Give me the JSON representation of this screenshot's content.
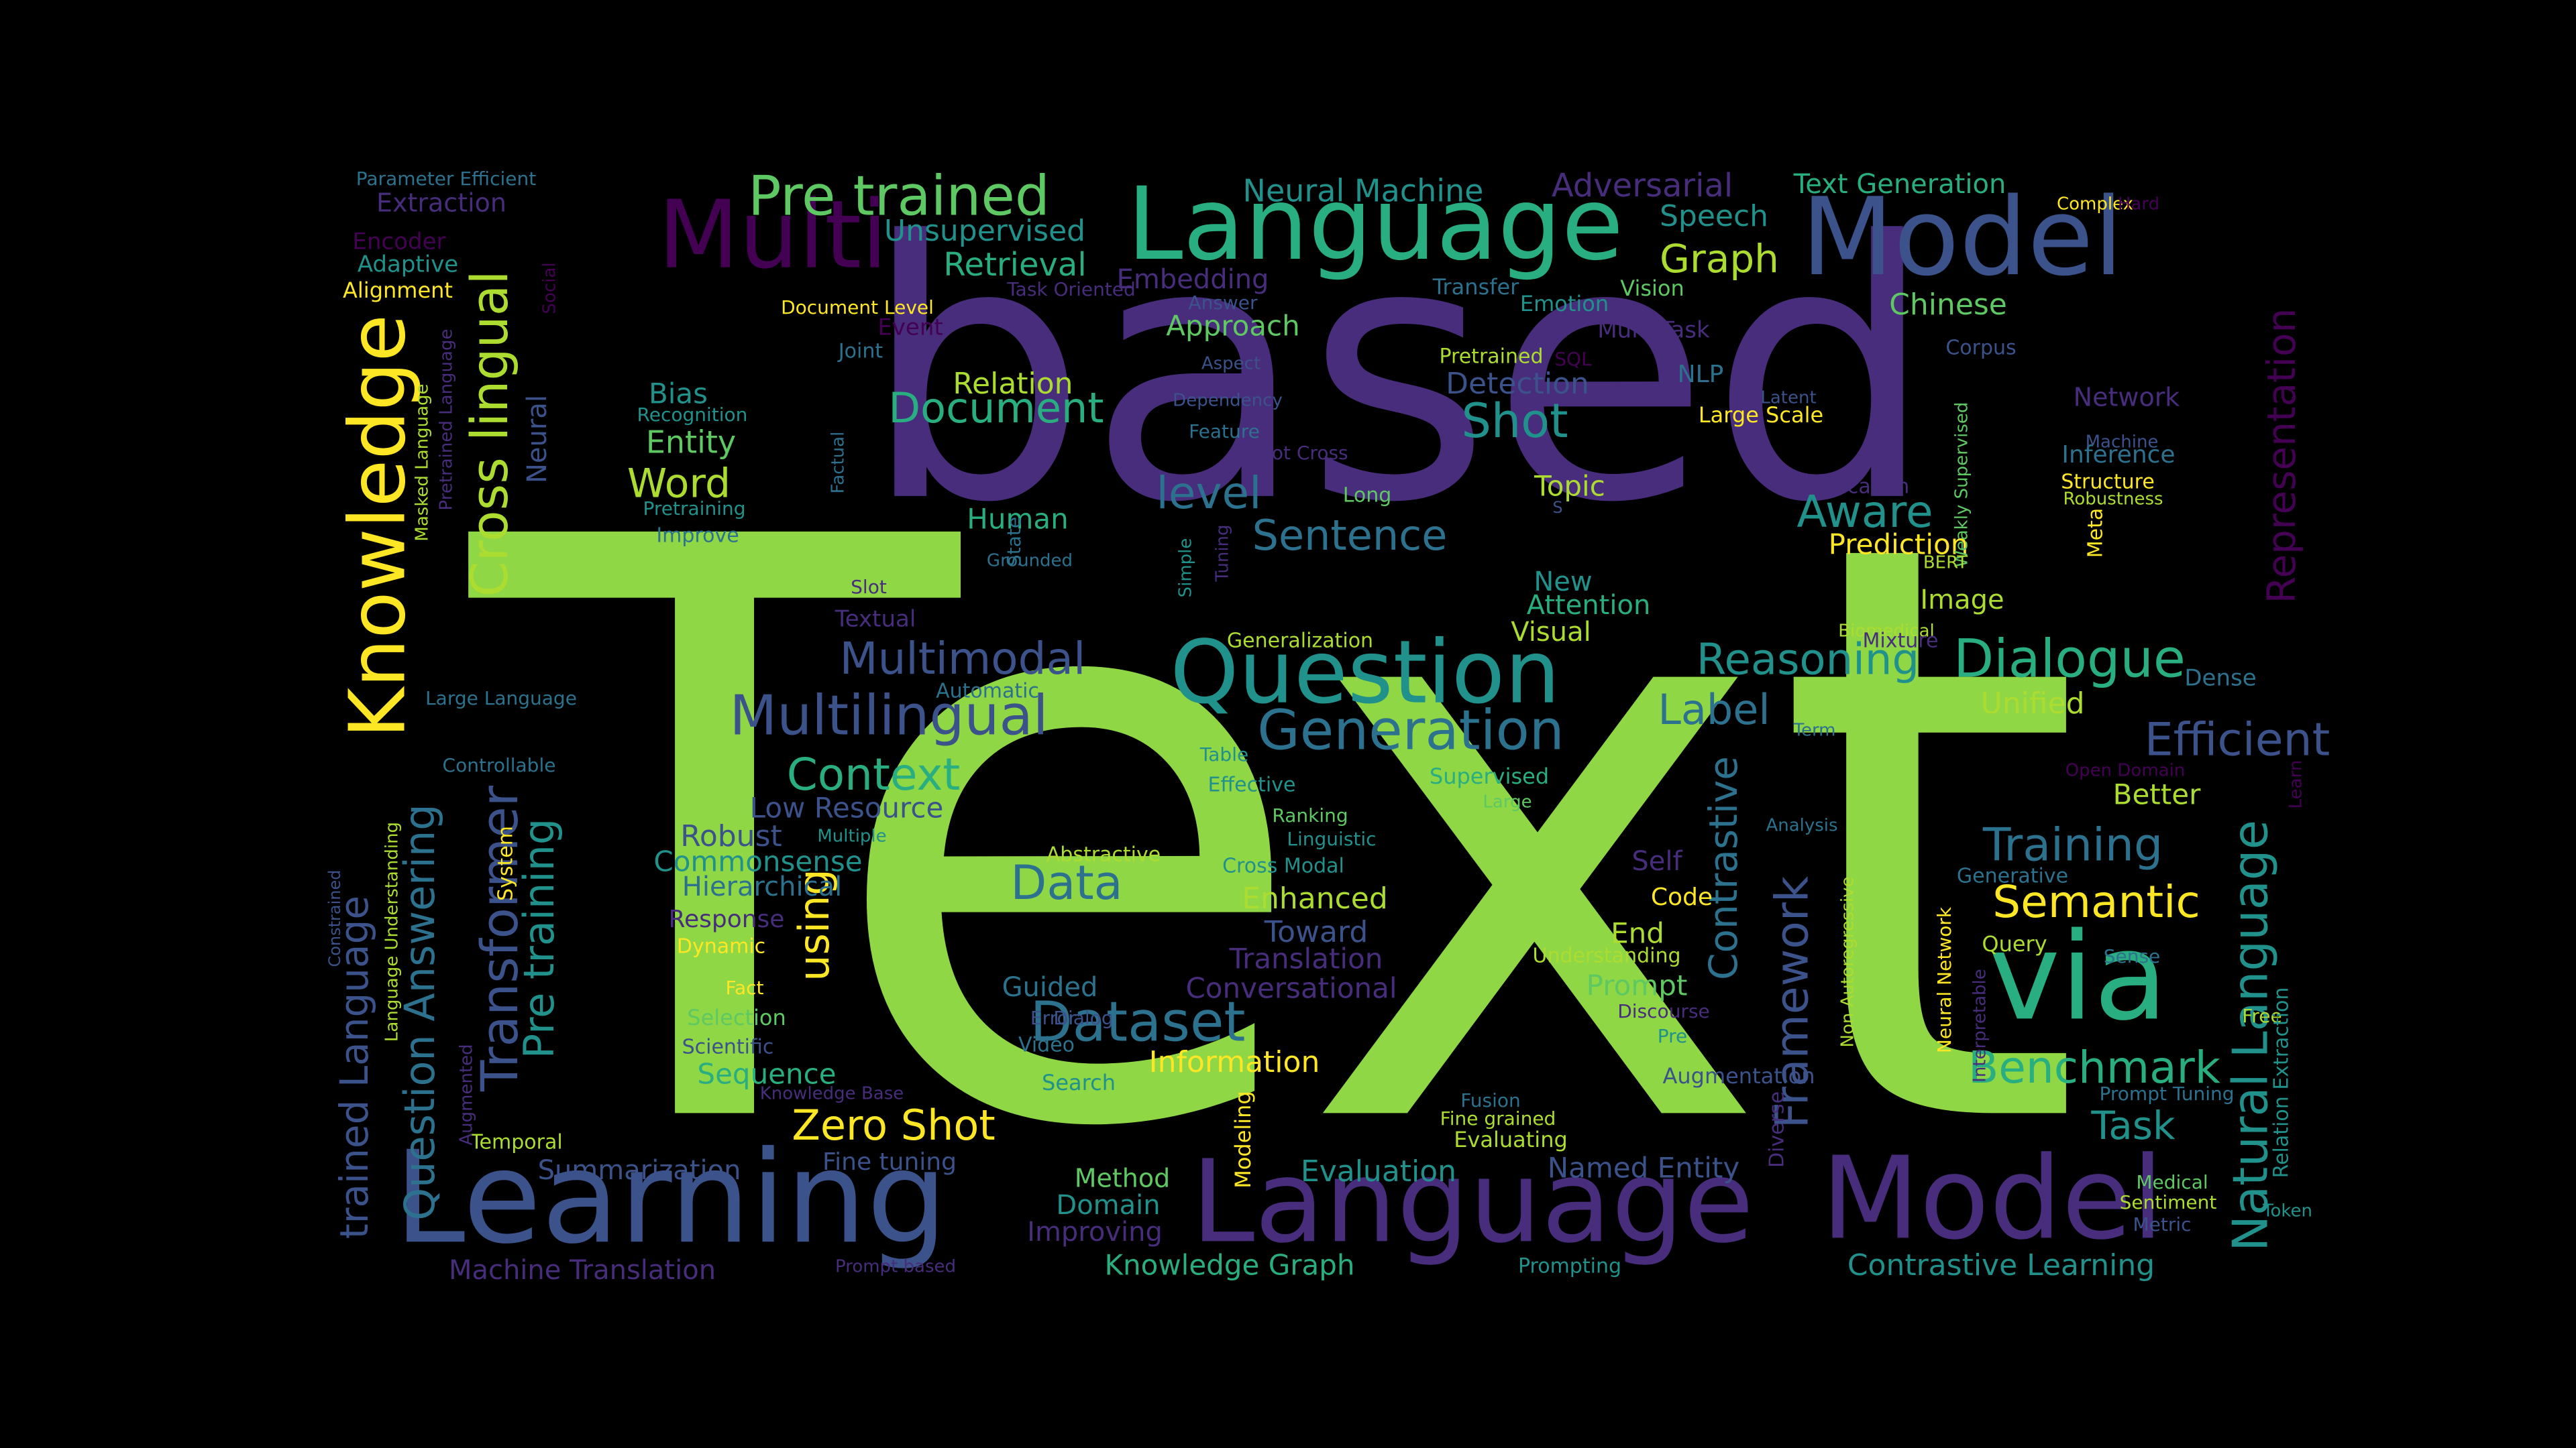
{
  "palette": {
    "background": "#000000",
    "c1": "#440154",
    "c2": "#472D7B",
    "c3": "#3B528B",
    "c4": "#2C728E",
    "c5": "#21918C",
    "c6": "#28AE80",
    "c7": "#5EC962",
    "c8": "#8FD744",
    "c9": "#ADDC30",
    "c10": "#FDE725"
  },
  "words": [
    {
      "text": "Text",
      "color": "#8FD744"
    },
    {
      "text": "based",
      "color": "#472D7B"
    },
    {
      "text": "Language",
      "color": "#28AE80"
    },
    {
      "text": "Model",
      "color": "#3B528B"
    },
    {
      "text": "Learning",
      "color": "#3B528B"
    },
    {
      "text": "Language",
      "color": "#472D7B"
    },
    {
      "text": "Model",
      "color": "#472D7B"
    },
    {
      "text": "Multi",
      "color": "#440154"
    },
    {
      "text": "Question",
      "color": "#21918C"
    },
    {
      "text": "Knowledge",
      "color": "#FDE725"
    },
    {
      "text": "via",
      "color": "#28AE80"
    },
    {
      "text": "Pre trained",
      "color": "#5EC962"
    },
    {
      "text": "Cross lingual",
      "color": "#ADDC30"
    },
    {
      "text": "Generation",
      "color": "#2C728E"
    },
    {
      "text": "Multilingual",
      "color": "#3B528B"
    },
    {
      "text": "Transformer",
      "color": "#3B528B"
    },
    {
      "text": "Natural Language",
      "color": "#21918C"
    },
    {
      "text": "Dialogue",
      "color": "#28AE80"
    },
    {
      "text": "Representation",
      "color": "#440154"
    },
    {
      "text": "Question Answering",
      "color": "#2C728E"
    },
    {
      "text": "Pre training",
      "color": "#21918C"
    },
    {
      "text": "trained Language",
      "color": "#3B528B"
    },
    {
      "text": "Framework",
      "color": "#3B528B"
    },
    {
      "text": "Contrastive",
      "color": "#2C728E"
    },
    {
      "text": "Multimodal",
      "color": "#3B528B"
    },
    {
      "text": "Reasoning",
      "color": "#21918C"
    },
    {
      "text": "Efficient",
      "color": "#3B528B"
    },
    {
      "text": "Training",
      "color": "#2C728E"
    },
    {
      "text": "Semantic",
      "color": "#FDE725"
    },
    {
      "text": "Benchmark",
      "color": "#28AE80"
    },
    {
      "text": "Context",
      "color": "#28AE80"
    },
    {
      "text": "Data",
      "color": "#2C728E"
    },
    {
      "text": "Dataset",
      "color": "#2C728E"
    },
    {
      "text": "Document",
      "color": "#28AE80"
    },
    {
      "text": "Shot",
      "color": "#21918C"
    },
    {
      "text": "Zero Shot",
      "color": "#FDE725"
    },
    {
      "text": "Sentence",
      "color": "#2C728E"
    },
    {
      "text": "Aware",
      "color": "#21918C"
    },
    {
      "text": "level",
      "color": "#2C728E"
    },
    {
      "text": "Word",
      "color": "#ADDC30"
    },
    {
      "text": "Graph",
      "color": "#ADDC30"
    },
    {
      "text": "Label",
      "color": "#2C728E"
    },
    {
      "text": "Task",
      "color": "#21918C"
    },
    {
      "text": "using",
      "color": "#FDE725"
    },
    {
      "text": "Neural Machine",
      "color": "#21918C"
    },
    {
      "text": "Adversarial",
      "color": "#472D7B"
    },
    {
      "text": "Text Generation",
      "color": "#28AE80"
    },
    {
      "text": "Speech",
      "color": "#21918C"
    },
    {
      "text": "Chinese",
      "color": "#5EC962"
    },
    {
      "text": "Retrieval",
      "color": "#28AE80"
    },
    {
      "text": "Unsupervised",
      "color": "#21918C"
    },
    {
      "text": "Embedding",
      "color": "#472D7B"
    },
    {
      "text": "Approach",
      "color": "#5EC962"
    },
    {
      "text": "Relation",
      "color": "#ADDC30"
    },
    {
      "text": "Detection",
      "color": "#3B528B"
    },
    {
      "text": "Entity",
      "color": "#5EC962"
    },
    {
      "text": "Bias",
      "color": "#21918C"
    },
    {
      "text": "Human",
      "color": "#28AE80"
    },
    {
      "text": "Topic",
      "color": "#ADDC30"
    },
    {
      "text": "Prediction",
      "color": "#FDE725"
    },
    {
      "text": "Attention",
      "color": "#28AE80"
    },
    {
      "text": "New",
      "color": "#21918C"
    },
    {
      "text": "Image",
      "color": "#ADDC30"
    },
    {
      "text": "Visual",
      "color": "#ADDC30"
    },
    {
      "text": "Unified",
      "color": "#ADDC30"
    },
    {
      "text": "Better",
      "color": "#ADDC30"
    },
    {
      "text": "Low Resource",
      "color": "#3B528B"
    },
    {
      "text": "Robust",
      "color": "#3B528B"
    },
    {
      "text": "Commonsense",
      "color": "#21918C"
    },
    {
      "text": "Hierarchical",
      "color": "#2C728E"
    },
    {
      "text": "Response",
      "color": "#472D7B"
    },
    {
      "text": "Enhanced",
      "color": "#ADDC30"
    },
    {
      "text": "Toward",
      "color": "#3B528B"
    },
    {
      "text": "Translation",
      "color": "#472D7B"
    },
    {
      "text": "Conversational",
      "color": "#472D7B"
    },
    {
      "text": "Guided",
      "color": "#2C728E"
    },
    {
      "text": "Information",
      "color": "#FDE725"
    },
    {
      "text": "Sequence",
      "color": "#28AE80"
    },
    {
      "text": "Summarization",
      "color": "#3B528B"
    },
    {
      "text": "Fine tuning",
      "color": "#3B528B"
    },
    {
      "text": "Method",
      "color": "#5EC962"
    },
    {
      "text": "Domain",
      "color": "#21918C"
    },
    {
      "text": "Improving",
      "color": "#472D7B"
    },
    {
      "text": "Knowledge Graph",
      "color": "#28AE80"
    },
    {
      "text": "Evaluation",
      "color": "#21918C"
    },
    {
      "text": "Named Entity",
      "color": "#3B528B"
    },
    {
      "text": "Contrastive Learning",
      "color": "#21918C"
    },
    {
      "text": "Machine Translation",
      "color": "#472D7B"
    },
    {
      "text": "Self",
      "color": "#472D7B"
    },
    {
      "text": "Code",
      "color": "#FDE725"
    },
    {
      "text": "End",
      "color": "#ADDC30"
    },
    {
      "text": "Prompt",
      "color": "#5EC962"
    },
    {
      "text": "Extraction",
      "color": "#472D7B"
    },
    {
      "text": "Encoder",
      "color": "#440154"
    },
    {
      "text": "Adaptive",
      "color": "#21918C"
    },
    {
      "text": "Alignment",
      "color": "#FDE725"
    },
    {
      "text": "Parameter Efficient",
      "color": "#2C728E"
    },
    {
      "text": "Neural",
      "color": "#3B528B"
    },
    {
      "text": "Recognition",
      "color": "#21918C"
    },
    {
      "text": "Pretraining",
      "color": "#21918C"
    },
    {
      "text": "Improve",
      "color": "#2C728E"
    },
    {
      "text": "Textual",
      "color": "#472D7B"
    },
    {
      "text": "Slot",
      "color": "#472D7B"
    },
    {
      "text": "Automatic",
      "color": "#2C728E"
    },
    {
      "text": "Large Language",
      "color": "#2C728E"
    },
    {
      "text": "Controllable",
      "color": "#2C728E"
    },
    {
      "text": "Multiple",
      "color": "#21918C"
    },
    {
      "text": "Abstractive",
      "color": "#ADDC30"
    },
    {
      "text": "Cross Modal",
      "color": "#21918C"
    },
    {
      "text": "Linguistic",
      "color": "#21918C"
    },
    {
      "text": "Ranking",
      "color": "#5EC962"
    },
    {
      "text": "Effective",
      "color": "#21918C"
    },
    {
      "text": "Table",
      "color": "#21918C"
    },
    {
      "text": "Supervised",
      "color": "#28AE80"
    },
    {
      "text": "Large",
      "color": "#5EC962"
    },
    {
      "text": "Generalization",
      "color": "#ADDC30"
    },
    {
      "text": "Grounded",
      "color": "#2C728E"
    },
    {
      "text": "State",
      "color": "#2C728E"
    },
    {
      "text": "Simple",
      "color": "#21918C"
    },
    {
      "text": "Tuning",
      "color": "#472D7B"
    },
    {
      "text": "Long",
      "color": "#5EC962"
    },
    {
      "text": "Shot Cross",
      "color": "#472D7B"
    },
    {
      "text": "Feature",
      "color": "#2C728E"
    },
    {
      "text": "Dependency",
      "color": "#3B528B"
    },
    {
      "text": "Aspect",
      "color": "#3B528B"
    },
    {
      "text": "Answer",
      "color": "#3B528B"
    },
    {
      "text": "Task Oriented",
      "color": "#472D7B"
    },
    {
      "text": "Document Level",
      "color": "#FDE725"
    },
    {
      "text": "Event",
      "color": "#440154"
    },
    {
      "text": "Joint",
      "color": "#2C728E"
    },
    {
      "text": "Transfer",
      "color": "#2C728E"
    },
    {
      "text": "Emotion",
      "color": "#21918C"
    },
    {
      "text": "Vision",
      "color": "#5EC962"
    },
    {
      "text": "Multi Task",
      "color": "#472D7B"
    },
    {
      "text": "Pretrained",
      "color": "#ADDC30"
    },
    {
      "text": "SQL",
      "color": "#440154"
    },
    {
      "text": "NLP",
      "color": "#2C728E"
    },
    {
      "text": "Latent",
      "color": "#3B528B"
    },
    {
      "text": "Large Scale",
      "color": "#FDE725"
    },
    {
      "text": "Classification",
      "color": "#472D7B"
    },
    {
      "text": "Corpus",
      "color": "#3B528B"
    },
    {
      "text": "Network",
      "color": "#472D7B"
    },
    {
      "text": "Inference",
      "color": "#2C728E"
    },
    {
      "text": "Machine",
      "color": "#3B528B"
    },
    {
      "text": "Structure",
      "color": "#FDE725"
    },
    {
      "text": "Robustness",
      "color": "#ADDC30"
    },
    {
      "text": "Meta",
      "color": "#FDE725"
    },
    {
      "text": "Weakly Supervised",
      "color": "#5EC962"
    },
    {
      "text": "BERT",
      "color": "#ADDC30"
    },
    {
      "text": "Biomedical",
      "color": "#ADDC30"
    },
    {
      "text": "Mixture",
      "color": "#472D7B"
    },
    {
      "text": "Dense",
      "color": "#2C728E"
    },
    {
      "text": "Term",
      "color": "#2C728E"
    },
    {
      "text": "Open Domain",
      "color": "#440154"
    },
    {
      "text": "Learn",
      "color": "#440154"
    },
    {
      "text": "Analysis",
      "color": "#2C728E"
    },
    {
      "text": "Non Autoregressive",
      "color": "#ADDC30"
    },
    {
      "text": "Neural Network",
      "color": "#FDE725"
    },
    {
      "text": "Interpretable",
      "color": "#472D7B"
    },
    {
      "text": "Generative",
      "color": "#2C728E"
    },
    {
      "text": "Query",
      "color": "#ADDC30"
    },
    {
      "text": "Sense",
      "color": "#2C728E"
    },
    {
      "text": "Free",
      "color": "#ADDC30"
    },
    {
      "text": "Relation Extraction",
      "color": "#21918C"
    },
    {
      "text": "Prompt Tuning",
      "color": "#2C728E"
    },
    {
      "text": "Medical",
      "color": "#5EC962"
    },
    {
      "text": "Sentiment",
      "color": "#ADDC30"
    },
    {
      "text": "Metric",
      "color": "#3B528B"
    },
    {
      "text": "Token",
      "color": "#21918C"
    },
    {
      "text": "Diverse",
      "color": "#472D7B"
    },
    {
      "text": "Augmentation",
      "color": "#3B528B"
    },
    {
      "text": "Pre",
      "color": "#21918C"
    },
    {
      "text": "Discourse",
      "color": "#472D7B"
    },
    {
      "text": "Understanding",
      "color": "#ADDC30"
    },
    {
      "text": "Fusion",
      "color": "#2C728E"
    },
    {
      "text": "Fine grained",
      "color": "#ADDC30"
    },
    {
      "text": "Evaluating",
      "color": "#ADDC30"
    },
    {
      "text": "Prompting",
      "color": "#21918C"
    },
    {
      "text": "Modeling",
      "color": "#FDE725"
    },
    {
      "text": "Prompt based",
      "color": "#472D7B"
    },
    {
      "text": "Search",
      "color": "#21918C"
    },
    {
      "text": "Video",
      "color": "#2C728E"
    },
    {
      "text": "Dialog",
      "color": "#3B528B"
    },
    {
      "text": "Error",
      "color": "#3B528B"
    },
    {
      "text": "Selection",
      "color": "#5EC962"
    },
    {
      "text": "Scientific",
      "color": "#3B528B"
    },
    {
      "text": "Fact",
      "color": "#FDE725"
    },
    {
      "text": "Dynamic",
      "color": "#FDE725"
    },
    {
      "text": "Knowledge Base",
      "color": "#472D7B"
    },
    {
      "text": "Temporal",
      "color": "#ADDC30"
    },
    {
      "text": "Augmented",
      "color": "#472D7B"
    },
    {
      "text": "System",
      "color": "#FDE725"
    },
    {
      "text": "Language Understanding",
      "color": "#ADDC30"
    },
    {
      "text": "Constrained",
      "color": "#3B528B"
    },
    {
      "text": "Masked Language",
      "color": "#ADDC30"
    },
    {
      "text": "Pretrained Language",
      "color": "#472D7B"
    },
    {
      "text": "Factual",
      "color": "#2C728E"
    },
    {
      "text": "Social",
      "color": "#440154"
    },
    {
      "text": "Complex",
      "color": "#FDE725"
    },
    {
      "text": "Hard",
      "color": "#440154"
    },
    {
      "text": "S",
      "color": "#3B528B"
    }
  ]
}
